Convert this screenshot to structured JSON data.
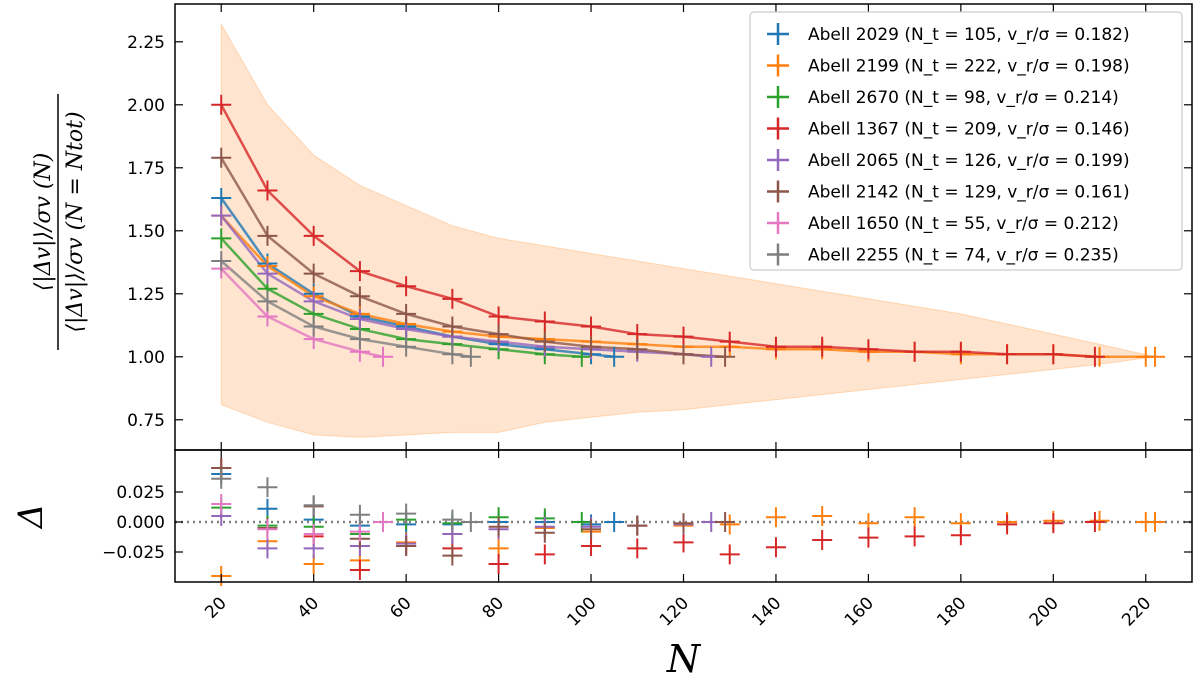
{
  "chart_data": {
    "type": "line",
    "xlabel": "N",
    "ylabel_top_numerator": "⟨|Δv|⟩/σv (N)",
    "ylabel_top_denominator": "⟨|Δv|⟩/σv (N = Ntot)",
    "ylabel_bottom": "Δ",
    "xlim": [
      10,
      230
    ],
    "ylim_top": [
      0.63,
      2.4
    ],
    "ylim_bottom": [
      -0.05,
      0.06
    ],
    "xticks": [
      20,
      40,
      60,
      80,
      100,
      120,
      140,
      160,
      180,
      200,
      220
    ],
    "yticks_top": [
      "0.75",
      "1.00",
      "1.25",
      "1.50",
      "1.75",
      "2.00",
      "2.25"
    ],
    "yticks_bottom": [
      "−0.025",
      "0.000",
      "0.025"
    ],
    "band": {
      "x": [
        20,
        30,
        40,
        50,
        60,
        70,
        80,
        90,
        100,
        110,
        120,
        130,
        140,
        150,
        160,
        170,
        180,
        190,
        200,
        210,
        222
      ],
      "upper": [
        2.32,
        2.0,
        1.8,
        1.68,
        1.6,
        1.52,
        1.47,
        1.44,
        1.41,
        1.38,
        1.35,
        1.32,
        1.29,
        1.26,
        1.23,
        1.2,
        1.17,
        1.13,
        1.09,
        1.05,
        1.0
      ],
      "lower": [
        0.81,
        0.74,
        0.69,
        0.68,
        0.69,
        0.7,
        0.7,
        0.74,
        0.76,
        0.78,
        0.79,
        0.81,
        0.83,
        0.85,
        0.87,
        0.89,
        0.91,
        0.93,
        0.95,
        0.97,
        1.0
      ]
    },
    "series": [
      {
        "name": "Abell 2029",
        "label_math": "(N_t = 105, v_r/σ = 0.182)",
        "color": "#1f77b4",
        "x": [
          20,
          30,
          40,
          50,
          60,
          70,
          80,
          90,
          100,
          105
        ],
        "values": [
          1.63,
          1.37,
          1.25,
          1.16,
          1.12,
          1.08,
          1.05,
          1.03,
          1.01,
          1.0
        ],
        "residuals": [
          0.04,
          0.011,
          0.002,
          -0.003,
          -0.002,
          -0.002,
          0.0,
          0.0,
          -0.002,
          0.0
        ]
      },
      {
        "name": "Abell 2199",
        "label_math": "(N_t = 222, v_r/σ = 0.198)",
        "color": "#ff7f0e",
        "x": [
          20,
          30,
          40,
          50,
          60,
          70,
          80,
          90,
          100,
          110,
          120,
          130,
          140,
          150,
          160,
          170,
          180,
          190,
          200,
          210,
          220,
          222
        ],
        "values": [
          1.56,
          1.36,
          1.24,
          1.17,
          1.13,
          1.1,
          1.08,
          1.07,
          1.06,
          1.05,
          1.04,
          1.04,
          1.03,
          1.03,
          1.02,
          1.02,
          1.01,
          1.01,
          1.01,
          1.0,
          1.0,
          1.0
        ],
        "residuals": [
          -0.045,
          -0.016,
          -0.035,
          -0.032,
          -0.017,
          -0.01,
          -0.022,
          -0.005,
          -0.008,
          -0.003,
          -0.003,
          -0.002,
          0.004,
          0.005,
          -0.001,
          0.004,
          -0.001,
          0.0,
          0.001,
          0.001,
          0.0,
          0.0
        ]
      },
      {
        "name": "Abell 2670",
        "label_math": "(N_t = 98, v_r/σ = 0.214)",
        "color": "#2ca02c",
        "x": [
          20,
          30,
          40,
          50,
          60,
          70,
          80,
          90,
          98
        ],
        "values": [
          1.47,
          1.27,
          1.17,
          1.11,
          1.07,
          1.05,
          1.03,
          1.01,
          1.0
        ],
        "residuals": [
          0.012,
          -0.003,
          -0.004,
          -0.01,
          0.002,
          -0.001,
          0.004,
          0.003,
          0.0
        ]
      },
      {
        "name": "Abell 1367",
        "label_math": "(N_t = 209, v_r/σ = 0.146)",
        "color": "#d62728",
        "x": [
          20,
          30,
          40,
          50,
          60,
          70,
          80,
          90,
          100,
          110,
          120,
          130,
          140,
          150,
          160,
          170,
          180,
          190,
          200,
          209
        ],
        "values": [
          2.0,
          1.66,
          1.48,
          1.34,
          1.28,
          1.23,
          1.16,
          1.14,
          1.12,
          1.09,
          1.08,
          1.06,
          1.04,
          1.04,
          1.03,
          1.02,
          1.02,
          1.01,
          1.01,
          1.0
        ],
        "residuals": [
          0.045,
          -0.005,
          -0.012,
          -0.04,
          -0.02,
          -0.022,
          -0.035,
          -0.027,
          -0.02,
          -0.022,
          -0.017,
          -0.027,
          -0.021,
          -0.015,
          -0.013,
          -0.012,
          -0.011,
          -0.002,
          -0.001,
          0.0
        ]
      },
      {
        "name": "Abell 2065",
        "label_math": "(N_t = 126, v_r/σ = 0.199)",
        "color": "#9467bd",
        "x": [
          20,
          30,
          40,
          50,
          60,
          70,
          80,
          90,
          100,
          110,
          120,
          126
        ],
        "values": [
          1.56,
          1.33,
          1.22,
          1.15,
          1.11,
          1.08,
          1.06,
          1.04,
          1.03,
          1.02,
          1.01,
          1.0
        ],
        "residuals": [
          0.005,
          -0.022,
          -0.022,
          -0.02,
          -0.018,
          -0.01,
          -0.006,
          -0.004,
          -0.004,
          -0.003,
          -0.002,
          0.0
        ]
      },
      {
        "name": "Abell 2142",
        "label_math": "(N_t = 129, v_r/σ = 0.161)",
        "color": "#8c564b",
        "x": [
          20,
          30,
          40,
          50,
          60,
          70,
          80,
          90,
          100,
          110,
          120,
          129
        ],
        "values": [
          1.79,
          1.48,
          1.33,
          1.24,
          1.17,
          1.12,
          1.09,
          1.06,
          1.04,
          1.03,
          1.01,
          1.0
        ],
        "residuals": [
          0.045,
          -0.005,
          0.013,
          -0.014,
          -0.02,
          -0.028,
          -0.004,
          -0.009,
          -0.006,
          -0.003,
          -0.001,
          0.0
        ]
      },
      {
        "name": "Abell 1650",
        "label_math": "(N_t = 55, v_r/σ = 0.212)",
        "color": "#e377c2",
        "x": [
          20,
          30,
          40,
          50,
          55
        ],
        "values": [
          1.35,
          1.16,
          1.07,
          1.02,
          1.0
        ],
        "residuals": [
          0.015,
          -0.006,
          -0.01,
          -0.008,
          0.0
        ]
      },
      {
        "name": "Abell 2255",
        "label_math": "(N_t = 74, v_r/σ = 0.235)",
        "color": "#7f7f7f",
        "x": [
          20,
          30,
          40,
          50,
          60,
          70,
          74
        ],
        "values": [
          1.38,
          1.22,
          1.12,
          1.07,
          1.04,
          1.01,
          1.0
        ],
        "residuals": [
          0.036,
          0.029,
          0.014,
          0.006,
          0.007,
          0.002,
          0.0
        ]
      }
    ],
    "legend": {
      "placement": "top-right"
    }
  }
}
